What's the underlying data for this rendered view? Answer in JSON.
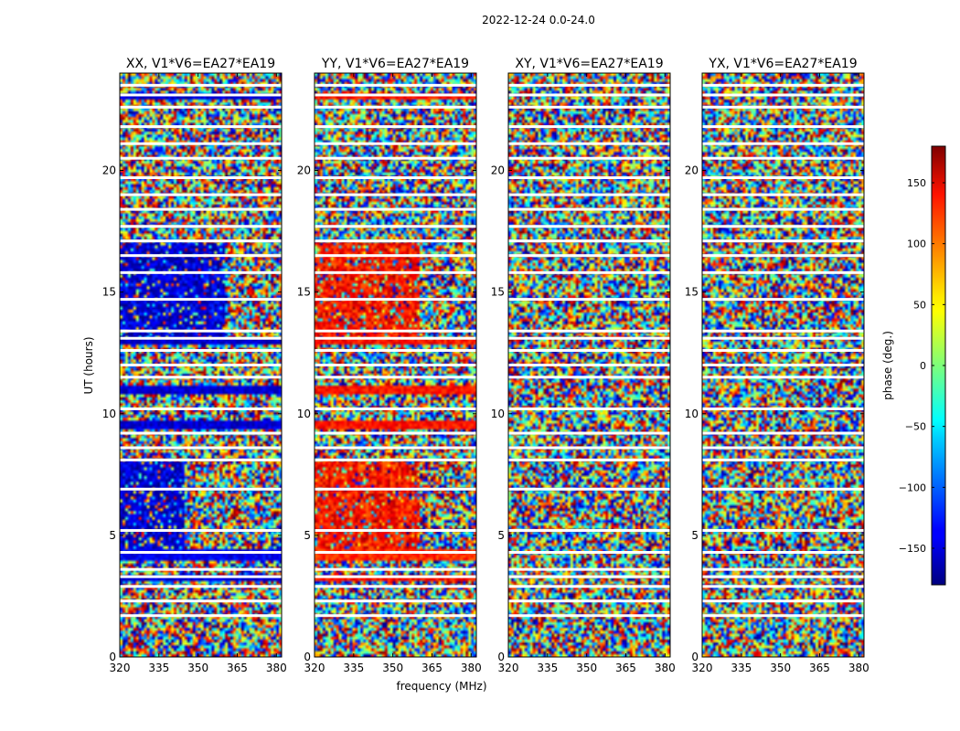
{
  "figure": {
    "suptitle": "2022-12-24 0.0-24.0",
    "xlabel": "frequency (MHz)",
    "ylabel": "UT (hours)"
  },
  "chart_data": {
    "type": "heatmap",
    "x_range": [
      320,
      382
    ],
    "y_range": [
      0,
      24
    ],
    "x_ticks": [
      320,
      335,
      350,
      365,
      380
    ],
    "y_ticks": [
      0,
      5,
      10,
      15,
      20
    ],
    "colormap": "jet",
    "panels": [
      {
        "title": "XX, V1*V6=EA27*EA19",
        "structure": [
          {
            "t0": 0,
            "t1": 3.1,
            "mode": "noise"
          },
          {
            "t0": 3.1,
            "t1": 3.3,
            "mode": "band",
            "value": -150
          },
          {
            "t0": 3.3,
            "t1": 4.0,
            "mode": "noise"
          },
          {
            "t0": 4.0,
            "t1": 4.4,
            "mode": "band",
            "value": -140
          },
          {
            "t0": 4.4,
            "t1": 8.1,
            "mode": "split",
            "value": -150,
            "fsplit": 345
          },
          {
            "t0": 8.1,
            "t1": 9.4,
            "mode": "noise"
          },
          {
            "t0": 9.4,
            "t1": 9.7,
            "mode": "band",
            "value": -150
          },
          {
            "t0": 9.7,
            "t1": 10.8,
            "mode": "noise"
          },
          {
            "t0": 10.8,
            "t1": 11.2,
            "mode": "band",
            "value": -150
          },
          {
            "t0": 11.2,
            "t1": 12.8,
            "mode": "noise"
          },
          {
            "t0": 12.8,
            "t1": 13.1,
            "mode": "band",
            "value": -150
          },
          {
            "t0": 13.1,
            "t1": 17.0,
            "mode": "split",
            "value": -150,
            "fsplit": 360
          },
          {
            "t0": 17.0,
            "t1": 22.9,
            "mode": "noise"
          },
          {
            "t0": 22.9,
            "t1": 23.2,
            "mode": "band",
            "value": -150
          },
          {
            "t0": 23.2,
            "t1": 24,
            "mode": "noise"
          }
        ]
      },
      {
        "title": "YY, V1*V6=EA27*EA19",
        "structure": [
          {
            "t0": 0,
            "t1": 3.1,
            "mode": "noise"
          },
          {
            "t0": 3.1,
            "t1": 3.3,
            "mode": "band",
            "value": 130
          },
          {
            "t0": 3.3,
            "t1": 4.0,
            "mode": "noise"
          },
          {
            "t0": 4.0,
            "t1": 4.4,
            "mode": "band",
            "value": 120
          },
          {
            "t0": 4.4,
            "t1": 8.1,
            "mode": "split",
            "value": 130,
            "fsplit": 360
          },
          {
            "t0": 8.1,
            "t1": 9.4,
            "mode": "noise"
          },
          {
            "t0": 9.4,
            "t1": 9.7,
            "mode": "band",
            "value": 130
          },
          {
            "t0": 9.7,
            "t1": 10.8,
            "mode": "noise"
          },
          {
            "t0": 10.8,
            "t1": 11.2,
            "mode": "band",
            "value": 130
          },
          {
            "t0": 11.2,
            "t1": 12.8,
            "mode": "noise"
          },
          {
            "t0": 12.8,
            "t1": 13.1,
            "mode": "band",
            "value": 130
          },
          {
            "t0": 13.1,
            "t1": 17.0,
            "mode": "split",
            "value": 130,
            "fsplit": 360
          },
          {
            "t0": 17.0,
            "t1": 22.9,
            "mode": "noise"
          },
          {
            "t0": 22.9,
            "t1": 23.2,
            "mode": "band",
            "value": 130
          },
          {
            "t0": 23.2,
            "t1": 24,
            "mode": "noise"
          }
        ]
      },
      {
        "title": "XY, V1*V6=EA27*EA19",
        "structure": [
          {
            "t0": 0,
            "t1": 24,
            "mode": "noise"
          }
        ]
      },
      {
        "title": "YX, V1*V6=EA27*EA19",
        "structure": [
          {
            "t0": 0,
            "t1": 24,
            "mode": "noise"
          }
        ]
      }
    ],
    "gaps_hours": [
      1.7,
      2.3,
      2.9,
      3.3,
      3.6,
      4.3,
      5.2,
      6.9,
      8.1,
      8.6,
      9.2,
      10.2,
      11.5,
      12.0,
      12.6,
      13.1,
      13.4,
      14.7,
      15.8,
      16.5,
      17.1,
      17.7,
      18.4,
      19.0,
      19.7,
      20.5,
      21.1,
      21.8,
      22.6,
      23.1,
      23.5
    ],
    "colorbar": {
      "label": "phase (deg.)",
      "range": [
        -180,
        180
      ],
      "ticks": [
        150,
        100,
        50,
        0,
        -50,
        -100,
        -150
      ],
      "tick_labels": [
        "150",
        "100",
        "50",
        "0",
        "−50",
        "−100",
        "−150"
      ]
    }
  }
}
